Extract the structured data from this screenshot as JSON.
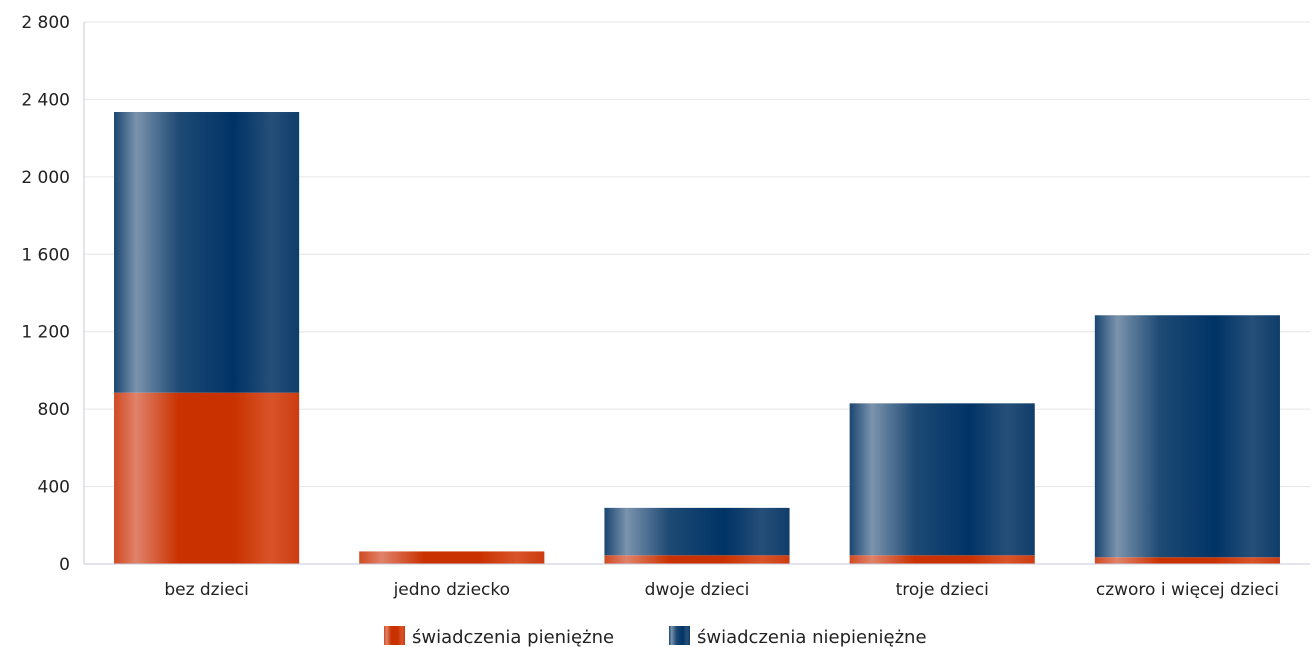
{
  "chart_data": {
    "type": "bar",
    "stacked": true,
    "categories": [
      "bez dzieci",
      "jedno dziecko",
      "dwoje dzieci",
      "troje dzieci",
      "czworo i więcej dzieci"
    ],
    "series": [
      {
        "name": "świadczenia pieniężne",
        "values": [
          885,
          65,
          45,
          45,
          35
        ]
      },
      {
        "name": "świadczenia niepieniężne",
        "values": [
          1450,
          0,
          245,
          785,
          1250
        ]
      }
    ],
    "ylim": [
      0,
      2800
    ],
    "yticks": [
      "0",
      "400",
      "800",
      "1 200",
      "1 600",
      "2 000",
      "2 400",
      "2 800"
    ],
    "ytick_values": [
      0,
      400,
      800,
      1200,
      1600,
      2000,
      2400,
      2800
    ],
    "grid": true,
    "legend_position": "bottom",
    "colors": {
      "świadczenia pieniężne": "#cc3300",
      "świadczenia niepieniężne": "#003366"
    }
  }
}
